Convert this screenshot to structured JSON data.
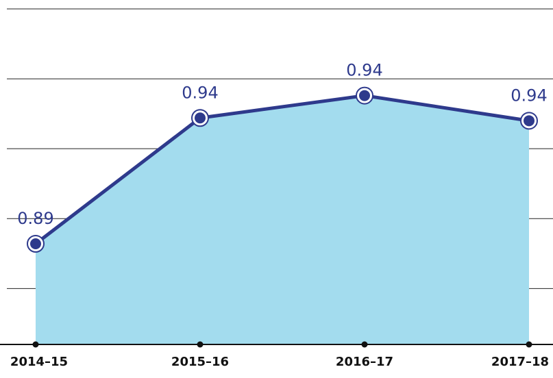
{
  "chart_data": {
    "type": "area",
    "categories": [
      "2014–15",
      "2015–16",
      "2016–17",
      "2017–18"
    ],
    "values": [
      0.891,
      0.936,
      0.944,
      0.935
    ],
    "value_labels": [
      "0.89",
      "0.94",
      "0.94",
      "0.94"
    ],
    "color": "#2e3a8c",
    "fill_color": "#a3dcee",
    "ylim": [
      0.855,
      0.975
    ],
    "yticks": [
      0.875,
      0.9,
      0.925,
      0.95,
      0.975
    ],
    "grid": true
  }
}
